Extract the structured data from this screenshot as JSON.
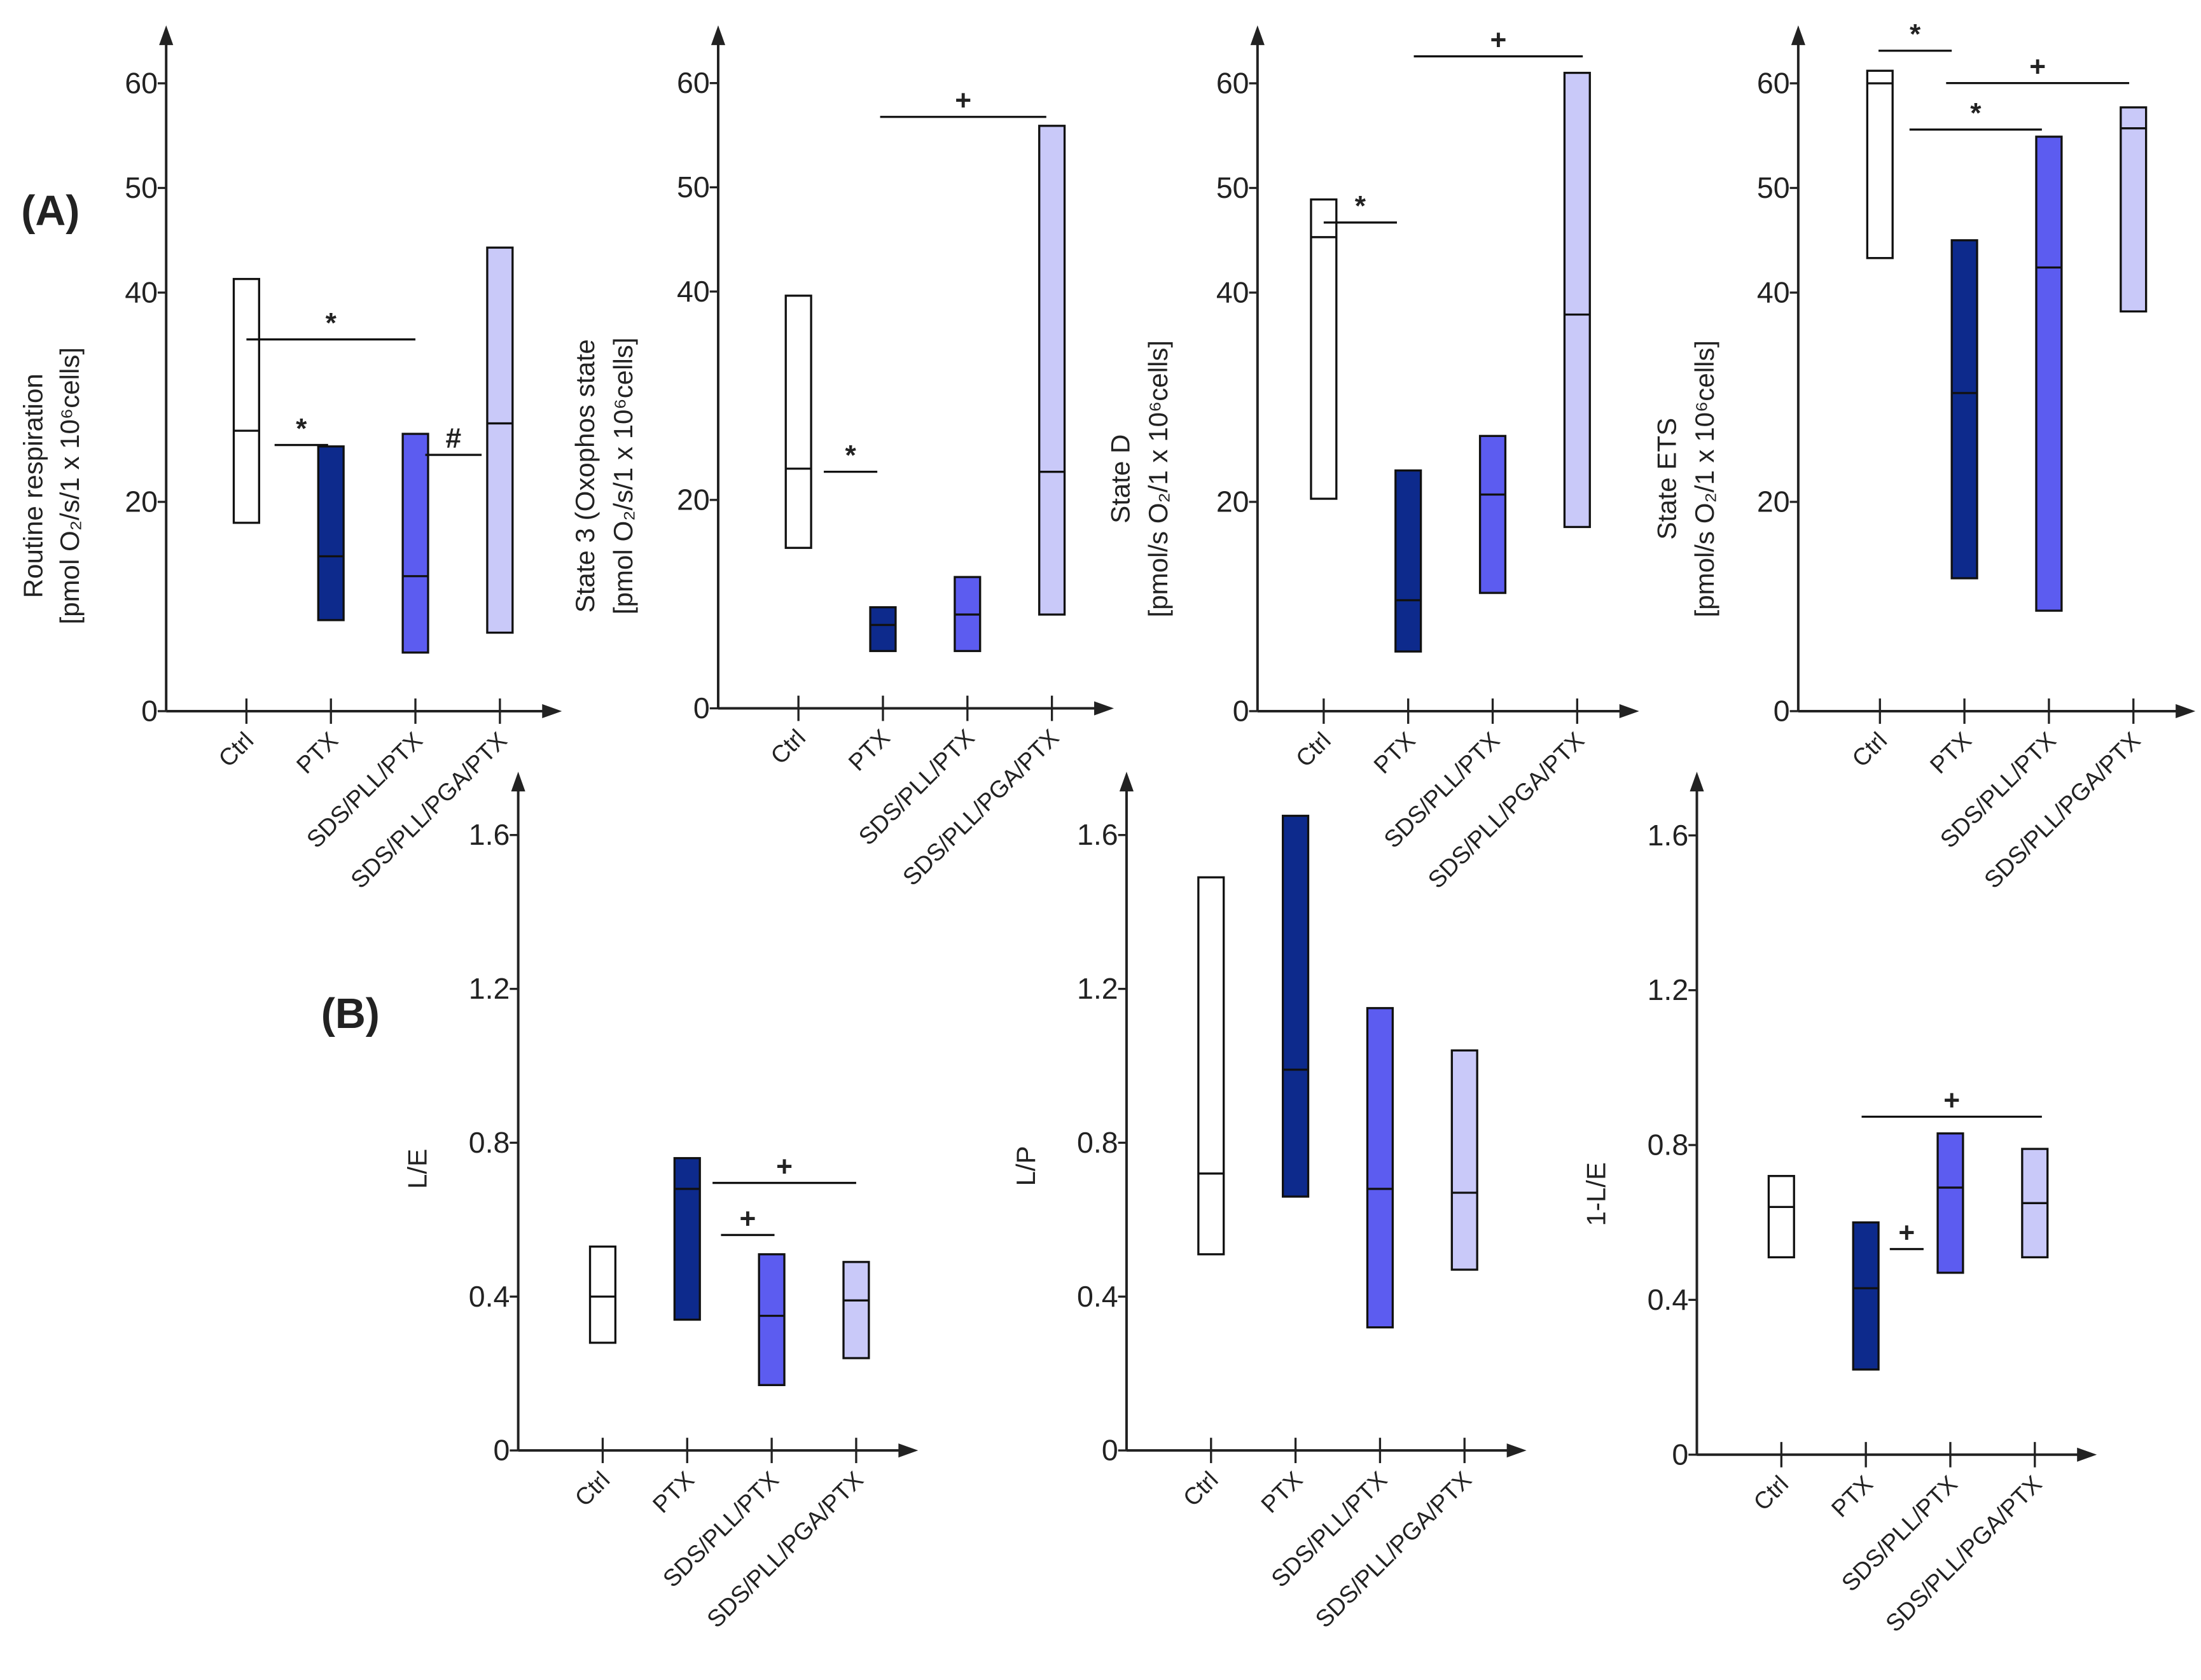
{
  "panel_labels": [
    "(A)",
    "(B)"
  ],
  "chart_data": [
    {
      "type": "box",
      "ylabel": [
        "Routine respiration",
        "[pmol O₂/s/1 x 10⁶cells]"
      ],
      "categories": [
        "Ctrl",
        "PTX",
        "SDS/PLL/PTX",
        "SDS/PLL/PGA/PTX"
      ],
      "low": [
        18,
        8.7,
        5.6,
        7.5
      ],
      "median": [
        26.8,
        14.8,
        12.9,
        27.5
      ],
      "high": [
        41.3,
        25.3,
        26.5,
        44.3
      ],
      "colors": [
        "#ffffff",
        "#0d2a8c",
        "#5c5cf0",
        "#c9c9f9"
      ],
      "ylim": [
        0,
        65
      ],
      "yticks": [
        0,
        20,
        40,
        50,
        60
      ],
      "annotations": [
        "*",
        "*",
        "#"
      ]
    },
    {
      "type": "box",
      "ylabel": [
        "State 3 (Oxophos state",
        "[pmol O₂/s/1 x 10⁶cells]"
      ],
      "categories": [
        "Ctrl",
        "PTX",
        "SDS/PLL/PTX",
        "SDS/PLL/PGA/PTX"
      ],
      "low": [
        15.4,
        5.5,
        5.5,
        9
      ],
      "median": [
        23,
        8,
        9,
        22.7
      ],
      "high": [
        39.6,
        9.7,
        12.6,
        55.9
      ],
      "colors": [
        "#ffffff",
        "#0d2a8c",
        "#5c5cf0",
        "#c9c9f9"
      ],
      "ylim": [
        0,
        65
      ],
      "yticks": [
        0,
        20,
        40,
        50,
        60
      ],
      "annotations": [
        "+",
        "*"
      ]
    },
    {
      "type": "box",
      "ylabel": [
        "State D",
        "[pmol/s O₂/1 x 10⁶cells]"
      ],
      "categories": [
        "Ctrl",
        "PTX",
        "SDS/PLL/PTX",
        "SDS/PLL/PGA/PTX"
      ],
      "low": [
        20.3,
        5.7,
        11.3,
        17.6
      ],
      "median": [
        45.3,
        10.6,
        20.7,
        37.9
      ],
      "high": [
        48.9,
        23,
        26.3,
        61
      ],
      "colors": [
        "#ffffff",
        "#0d2a8c",
        "#5c5cf0",
        "#c9c9f9"
      ],
      "ylim": [
        0,
        65
      ],
      "yticks": [
        0,
        20,
        40,
        50,
        60
      ],
      "annotations": [
        "*",
        "+"
      ]
    },
    {
      "type": "box",
      "ylabel": [
        "State ETS",
        "[pmol/s O₂/1 x 10⁶cells]"
      ],
      "categories": [
        "Ctrl",
        "PTX",
        "SDS/PLL/PTX",
        "SDS/PLL/PGA/PTX"
      ],
      "low": [
        43.3,
        12.7,
        9.6,
        38.2
      ],
      "median": [
        60,
        30.4,
        42.4,
        55.7
      ],
      "high": [
        61.2,
        45,
        54.9,
        57.7
      ],
      "colors": [
        "#ffffff",
        "#0d2a8c",
        "#5c5cf0",
        "#c9c9f9"
      ],
      "ylim": [
        0,
        65
      ],
      "yticks": [
        0,
        20,
        40,
        50,
        60
      ],
      "annotations": [
        "*",
        "+",
        "*"
      ]
    },
    {
      "type": "box",
      "ylabel": [
        "L/E"
      ],
      "categories": [
        "Ctrl",
        "PTX",
        "SDS/PLL/PTX",
        "SDS/PLL/PGA/PTX"
      ],
      "low": [
        0.28,
        0.34,
        0.17,
        0.24
      ],
      "median": [
        0.4,
        0.68,
        0.35,
        0.39
      ],
      "high": [
        0.53,
        0.76,
        0.51,
        0.49
      ],
      "colors": [
        "#ffffff",
        "#0d2a8c",
        "#5c5cf0",
        "#c9c9f9"
      ],
      "ylim": [
        0,
        1.75
      ],
      "yticks": [
        0,
        0.4,
        0.8,
        1.2,
        1.6
      ],
      "annotations": [
        "+",
        "+"
      ]
    },
    {
      "type": "box",
      "ylabel": [
        "L/P"
      ],
      "categories": [
        "Ctrl",
        "PTX",
        "SDS/PLL/PTX",
        "SDS/PLL/PGA/PTX"
      ],
      "low": [
        0.51,
        0.66,
        0.32,
        0.47
      ],
      "median": [
        0.72,
        0.99,
        0.68,
        0.67
      ],
      "high": [
        1.49,
        1.65,
        1.15,
        1.04
      ],
      "colors": [
        "#ffffff",
        "#0d2a8c",
        "#5c5cf0",
        "#c9c9f9"
      ],
      "ylim": [
        0,
        1.75
      ],
      "yticks": [
        0,
        0.4,
        0.8,
        1.2,
        1.6
      ],
      "annotations": []
    },
    {
      "type": "box",
      "ylabel": [
        "1-L/E"
      ],
      "categories": [
        "Ctrl",
        "PTX",
        "SDS/PLL/PTX",
        "SDS/PLL/PGA/PTX"
      ],
      "low": [
        0.51,
        0.22,
        0.47,
        0.51
      ],
      "median": [
        0.64,
        0.43,
        0.69,
        0.65
      ],
      "high": [
        0.72,
        0.6,
        0.83,
        0.79
      ],
      "colors": [
        "#ffffff",
        "#0d2a8c",
        "#5c5cf0",
        "#c9c9f9"
      ],
      "ylim": [
        0,
        1.75
      ],
      "yticks": [
        0,
        0.4,
        0.8,
        1.2,
        1.6
      ],
      "annotations": [
        "+",
        "+"
      ]
    }
  ]
}
